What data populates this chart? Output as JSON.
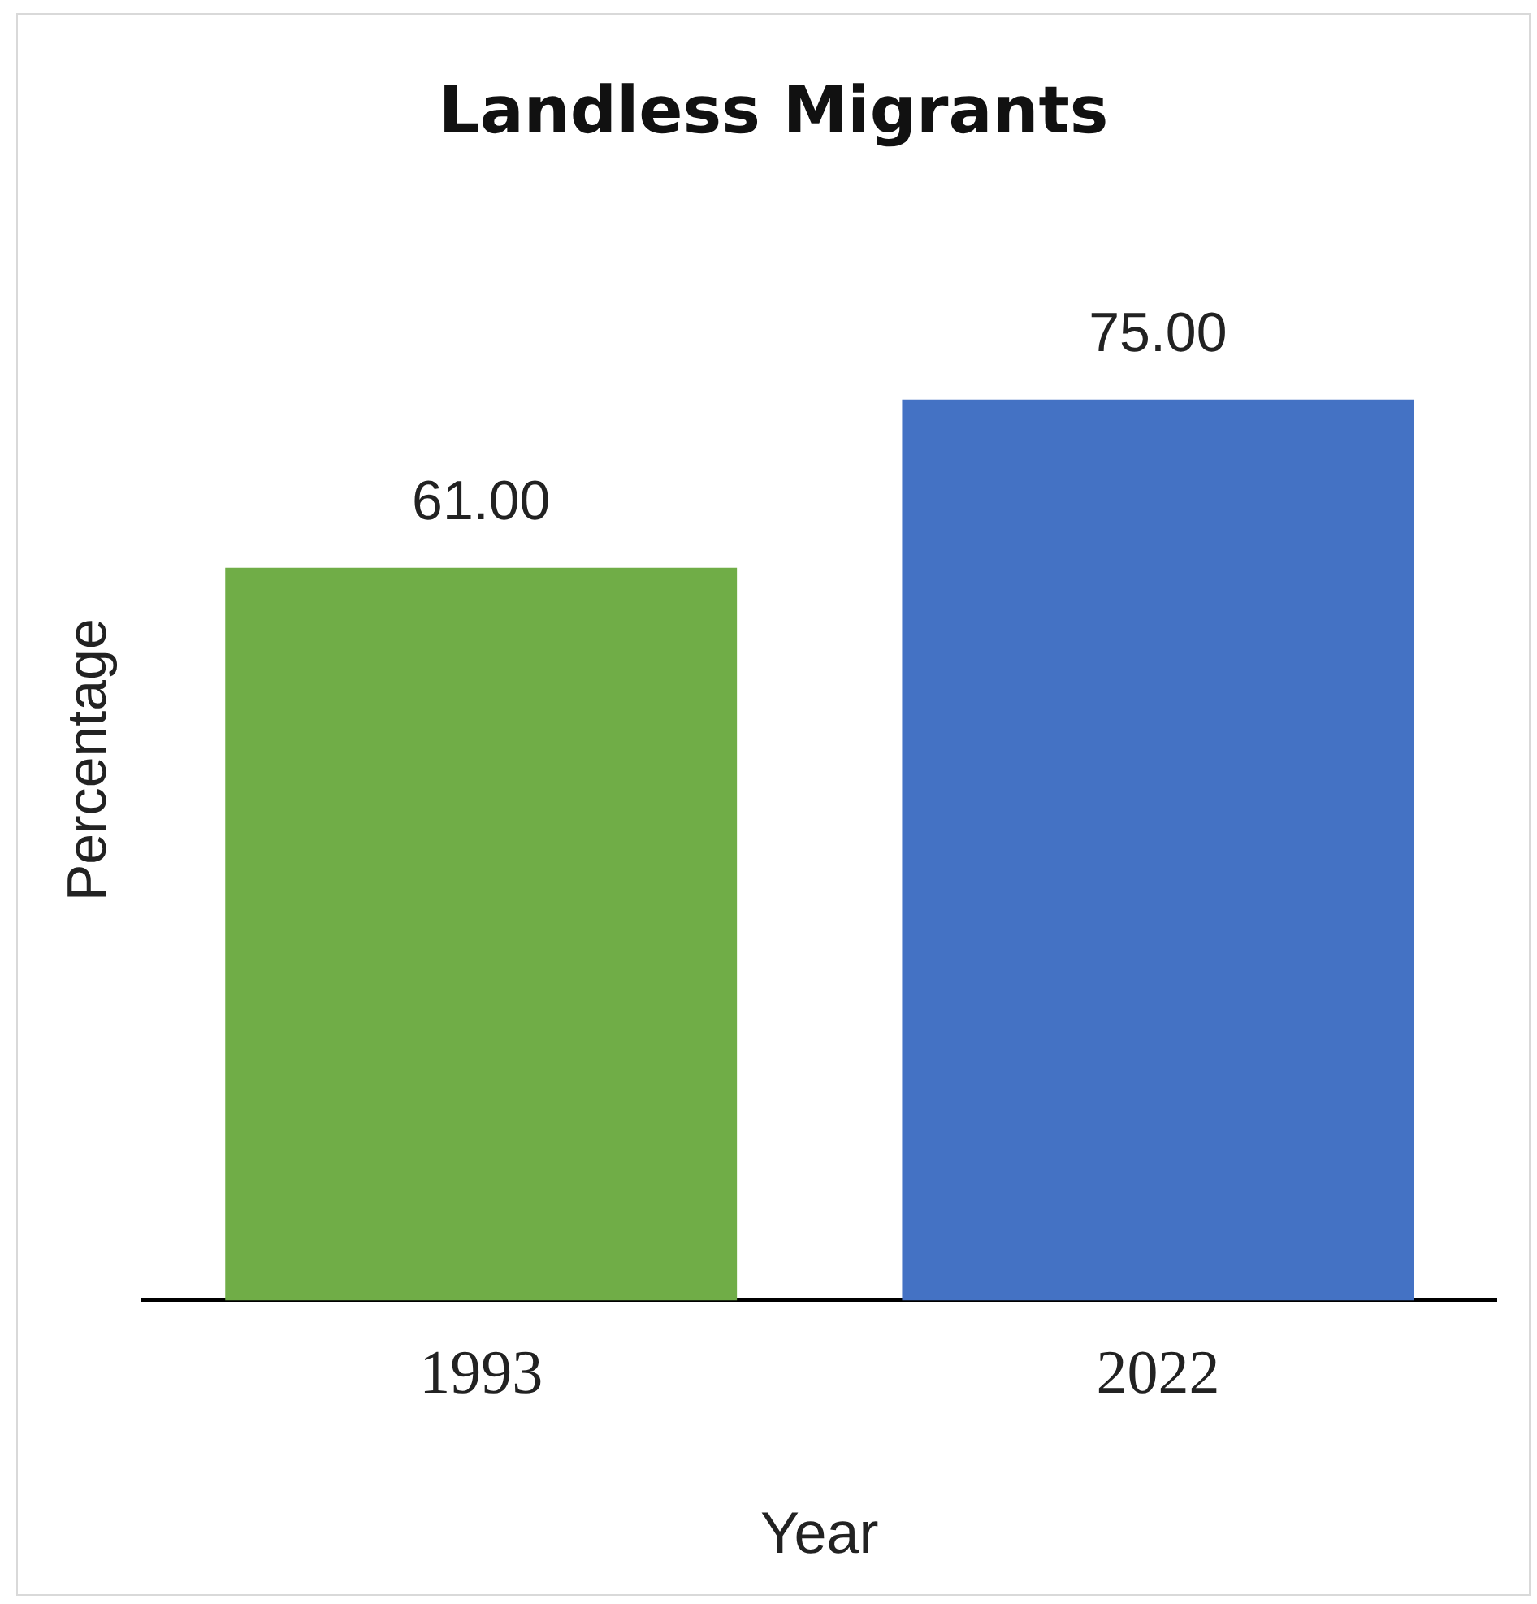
{
  "chart_data": {
    "type": "bar",
    "title": "Landless Migrants",
    "xlabel": "Year",
    "ylabel": "Percentage",
    "categories": [
      "1993",
      "2022"
    ],
    "values": [
      61,
      75
    ],
    "colors": [
      "#70ad47",
      "#4472c4"
    ],
    "value_labels": [
      "61.00",
      "75.00"
    ],
    "grid": false,
    "legend": false
  }
}
